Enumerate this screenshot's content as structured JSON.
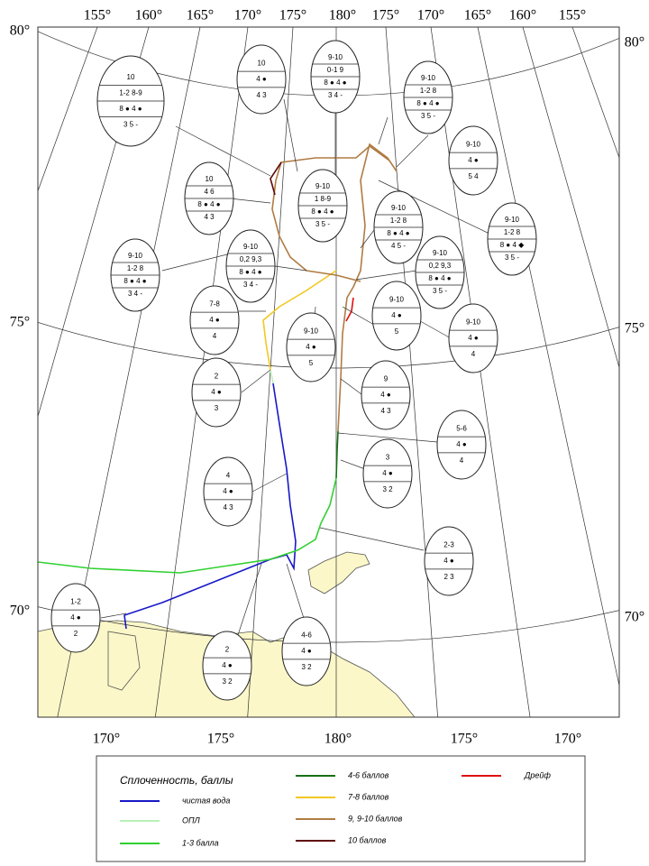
{
  "map": {
    "top_labels": [
      "155°",
      "160°",
      "165°",
      "170°",
      "175°",
      "180°",
      "175°",
      "170°",
      "165°",
      "160°",
      "155°"
    ],
    "left_labels": [
      "80°",
      "75°",
      "70°"
    ],
    "right_labels": [
      "80°",
      "75°",
      "70°"
    ],
    "bottom_labels": [
      "170°",
      "175°",
      "180°",
      "175°",
      "170°"
    ],
    "eggs": [
      {
        "rows": [
          "10",
          "1-2 8-9",
          "8 ● 4 ●",
          "3 5 -"
        ]
      },
      {
        "rows": [
          "10",
          "4 ●",
          "4 3"
        ]
      },
      {
        "rows": [
          "9-10",
          "0-1 9",
          "8 ● 4 ●",
          "3 4 -"
        ]
      },
      {
        "rows": [
          "9-10",
          "1-2 8",
          "8 ● 4 ●",
          "3 5 -"
        ]
      },
      {
        "rows": [
          "9-10",
          "4 ●",
          "5 4"
        ]
      },
      {
        "rows": [
          "10",
          "4 6",
          "8 ● 4 ●",
          "4 3"
        ]
      },
      {
        "rows": [
          "9-10",
          "1 8-9",
          "8 ● 4 ●",
          "3 5 -"
        ]
      },
      {
        "rows": [
          "9-10",
          "1-2 8",
          "8 ● 4 ●",
          "4 5 -"
        ]
      },
      {
        "rows": [
          "9-10",
          "1-2 8",
          "8 ● 4 ◆",
          "3 5 -"
        ]
      },
      {
        "rows": [
          "9-10",
          "1-2 8",
          "8 ● 4 ●",
          "3 4 -"
        ]
      },
      {
        "rows": [
          "9-10",
          "0,2 9,3",
          "8 ● 4 ●",
          "3 4 -"
        ]
      },
      {
        "rows": [
          "9-10",
          "0,2 9,3",
          "8 ● 4 ●",
          "3 5 -"
        ]
      },
      {
        "rows": [
          "7-8",
          "4 ●",
          "4"
        ]
      },
      {
        "rows": [
          "9-10",
          "4 ●",
          "5"
        ]
      },
      {
        "rows": [
          "9-10",
          "4 ●",
          "4"
        ]
      },
      {
        "rows": [
          "9-10",
          "4 ●",
          "5"
        ]
      },
      {
        "rows": [
          "2",
          "4 ●",
          "3"
        ]
      },
      {
        "rows": [
          "9",
          "4 ●",
          "4 3"
        ]
      },
      {
        "rows": [
          "5-6",
          "4 ●",
          "4"
        ]
      },
      {
        "rows": [
          "3",
          "4 ●",
          "3 2"
        ]
      },
      {
        "rows": [
          "4",
          "4 ●",
          "4 3"
        ]
      },
      {
        "rows": [
          "2-3",
          "4 ●",
          "2 3"
        ]
      },
      {
        "rows": [
          "1-2",
          "4 ●",
          "2"
        ]
      },
      {
        "rows": [
          "2",
          "4 ●",
          "3 2"
        ]
      },
      {
        "rows": [
          "4-6",
          "4 ●",
          "3 2"
        ]
      }
    ]
  },
  "legend": {
    "title": "Сплоченность, баллы",
    "items": [
      {
        "label": "чистая вода",
        "color": "#1818c8"
      },
      {
        "label": "ОПЛ",
        "color": "#b8f0b8"
      },
      {
        "label": "1-3 балла",
        "color": "#30d030"
      },
      {
        "label": "4-6 баллов",
        "color": "#167016"
      },
      {
        "label": "7-8 баллов",
        "color": "#f2c822"
      },
      {
        "label": "9, 9-10 баллов",
        "color": "#b07c44"
      },
      {
        "label": "10 баллов",
        "color": "#600a0a"
      },
      {
        "label": "Дрейф",
        "color": "#e01010"
      }
    ]
  }
}
